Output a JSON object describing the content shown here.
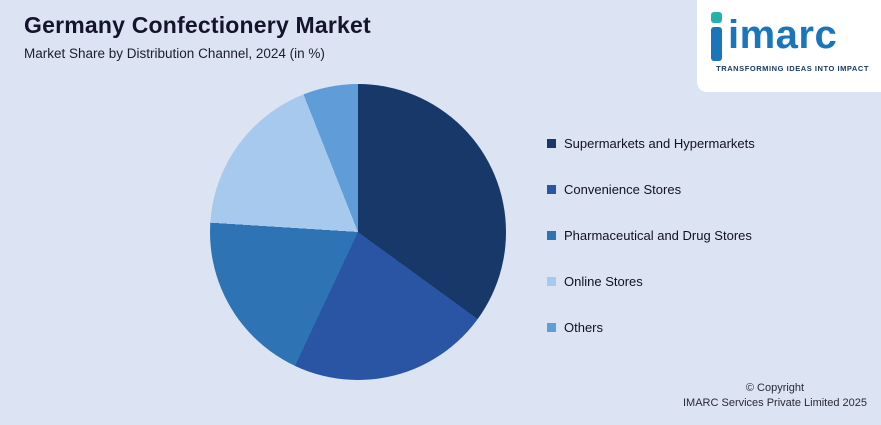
{
  "page": {
    "title": "Germany Confectionery Market",
    "subtitle": "Market Share by Distribution Channel, 2024 (in %)"
  },
  "chart_data": {
    "type": "pie",
    "title": "Germany Confectionery Market",
    "subtitle": "Market Share by Distribution Channel, 2024 (in %)",
    "labels": [
      "Supermarkets and Hypermarkets",
      "Convenience Stores",
      "Pharmaceutical and Drug Stores",
      "Online Stores",
      "Others"
    ],
    "values": [
      35,
      22,
      19,
      18,
      6
    ],
    "unit": "%",
    "colors": [
      "#19386a",
      "#2a54a4",
      "#2e74b5",
      "#a7c9ed",
      "#5f9cd8"
    ],
    "start_angle_deg": 0,
    "direction": "clockwise",
    "legend_position": "right",
    "data_labels_shown": false
  },
  "logo": {
    "brand": "imarc",
    "tagline": "TRANSFORMING IDEAS INTO IMPACT",
    "brand_color": "#1b75bb",
    "accent_color": "#25b2aa"
  },
  "footer": {
    "copyright_line1": "© Copyright",
    "copyright_line2": "IMARC Services Private Limited 2025"
  }
}
